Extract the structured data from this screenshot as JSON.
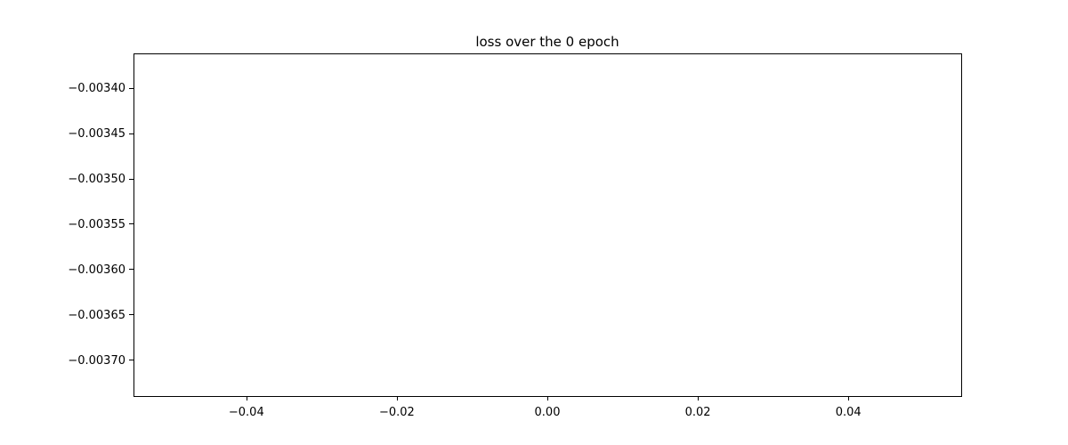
{
  "chart_data": {
    "type": "line",
    "title": "loss over the 0 epoch",
    "xlabel": "",
    "ylabel": "",
    "xlim": [
      -0.055,
      0.055
    ],
    "ylim": [
      -0.00374,
      -0.003362
    ],
    "x_ticks": [
      -0.04,
      -0.02,
      0.0,
      0.02,
      0.04
    ],
    "x_tick_labels": [
      "−0.04",
      "−0.02",
      "0.00",
      "0.02",
      "0.04"
    ],
    "y_ticks": [
      -0.0034,
      -0.00345,
      -0.0035,
      -0.00355,
      -0.0036,
      -0.00365,
      -0.0037
    ],
    "y_tick_labels": [
      "−0.00340",
      "−0.00345",
      "−0.00350",
      "−0.00355",
      "−0.00360",
      "−0.00365",
      "−0.00370"
    ],
    "grid": false,
    "series": [
      {
        "color": "#1f77b4",
        "x": [],
        "y": []
      }
    ]
  }
}
